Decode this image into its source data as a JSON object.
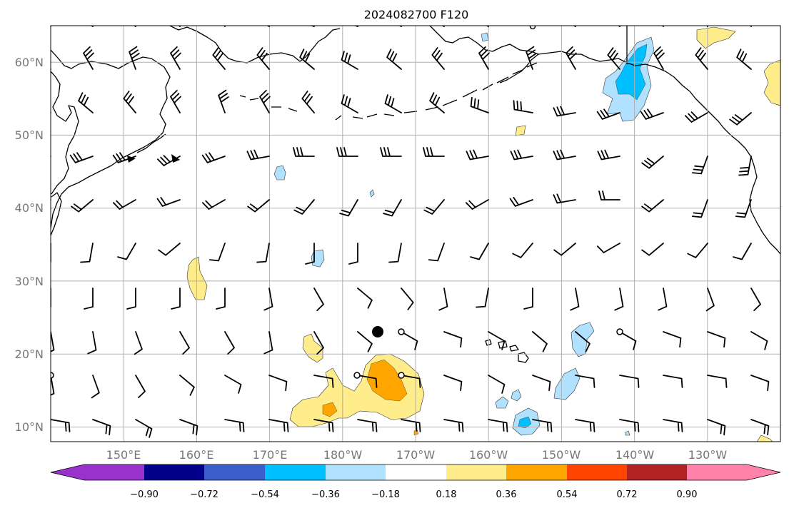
{
  "title": "2024082700 F120",
  "map": {
    "lon_range": [
      140,
      240
    ],
    "lat_range": [
      8,
      65
    ],
    "lat_ticks": [
      {
        "value": 10,
        "label": "10°N"
      },
      {
        "value": 20,
        "label": "20°N"
      },
      {
        "value": 30,
        "label": "30°N"
      },
      {
        "value": 40,
        "label": "40°N"
      },
      {
        "value": 50,
        "label": "50°N"
      },
      {
        "value": 60,
        "label": "60°N"
      }
    ],
    "lon_ticks": [
      {
        "value": 150,
        "label": "150°E"
      },
      {
        "value": 160,
        "label": "160°E"
      },
      {
        "value": 170,
        "label": "170°E"
      },
      {
        "value": 180,
        "label": "180°W"
      },
      {
        "value": 190,
        "label": "170°W"
      },
      {
        "value": 200,
        "label": "160°W"
      },
      {
        "value": 210,
        "label": "150°W"
      },
      {
        "value": 220,
        "label": "140°W"
      },
      {
        "value": 230,
        "label": "130°W"
      }
    ],
    "markers": {
      "big_dot": {
        "lon": 184.7,
        "lat": 23
      },
      "open_circles": [
        {
          "lon": 140,
          "lat": 17
        },
        {
          "lon": 181.8,
          "lat": 17
        },
        {
          "lon": 187.9,
          "lat": 17
        },
        {
          "lon": 187.9,
          "lat": 23
        },
        {
          "lon": 218.7,
          "lat": 23
        }
      ]
    }
  },
  "colorbar": {
    "colors": [
      "#9932cc",
      "#00008b",
      "#3a5fcd",
      "#00bfff",
      "#b0e2ff",
      "#ffffff",
      "#ffec8b",
      "#ffa500",
      "#ff4500",
      "#b22222",
      "#ff82ab"
    ],
    "tick_labels": [
      "−0.90",
      "−0.72",
      "−0.54",
      "−0.36",
      "−0.18",
      "0.18",
      "0.36",
      "0.54",
      "0.72",
      "0.90"
    ]
  },
  "colors": {
    "light_blue": "#b0e2ff",
    "blue": "#00bfff",
    "light_yellow": "#ffec8b",
    "orange": "#ffa500",
    "red_orange": "#ff4500"
  }
}
